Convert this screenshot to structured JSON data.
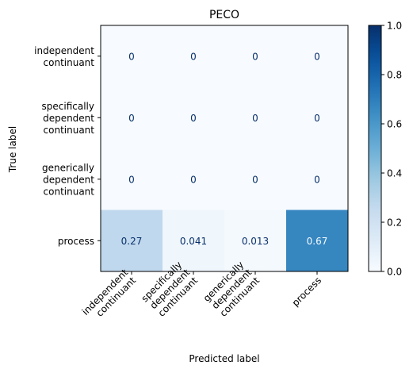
{
  "chart_data": {
    "type": "heatmap",
    "title": "PECO",
    "xlabel": "Predicted label",
    "ylabel": "True label",
    "x_categories": [
      [
        "independent",
        "continuant"
      ],
      [
        "specifically",
        "dependent",
        "continuant"
      ],
      [
        "generically",
        "dependent",
        "continuant"
      ],
      [
        "process"
      ]
    ],
    "y_categories": [
      [
        "independent",
        "continuant"
      ],
      [
        "specifically",
        "dependent",
        "continuant"
      ],
      [
        "generically",
        "dependent",
        "continuant"
      ],
      [
        "process"
      ]
    ],
    "matrix": [
      [
        0,
        0,
        0,
        0
      ],
      [
        0,
        0,
        0,
        0
      ],
      [
        0,
        0,
        0,
        0
      ],
      [
        0.27,
        0.041,
        0.013,
        0.67
      ]
    ],
    "cell_labels": [
      [
        "0",
        "0",
        "0",
        "0"
      ],
      [
        "0",
        "0",
        "0",
        "0"
      ],
      [
        "0",
        "0",
        "0",
        "0"
      ],
      [
        "0.27",
        "0.041",
        "0.013",
        "0.67"
      ]
    ],
    "colormap": "Blues",
    "vmin": 0.0,
    "vmax": 1.0,
    "colorbar_ticks": [
      "0.0",
      "0.2",
      "0.4",
      "0.6",
      "0.8",
      "1.0"
    ],
    "colors": {
      "cmap_low": "#f7fbff",
      "cmap_high": "#08306b",
      "text_dark": "#08306b",
      "text_light": "#f7fbff",
      "axis": "#000000"
    }
  }
}
